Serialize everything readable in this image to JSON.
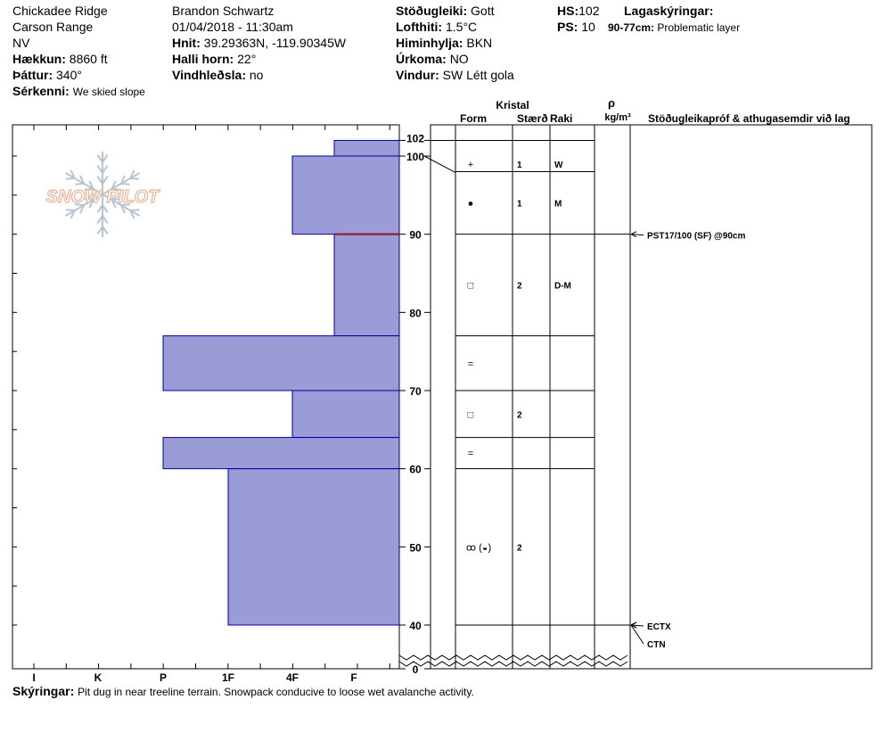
{
  "header": {
    "location": "Chickadee Ridge",
    "range": "Carson Range",
    "state": "NV",
    "elevation_label": "Hækkun:",
    "elevation": "8860 ft",
    "aspect_label": "Þáttur:",
    "aspect": "340°",
    "features_label": "Sérkenni:",
    "features": "We skied slope",
    "observer": "Brandon Schwartz",
    "datetime": "01/04/2018 - 11:30am",
    "coords_label": "Hnit:",
    "coords": "39.29363N, -119.90345W",
    "slope_label": "Halli horn:",
    "slope": "22°",
    "wind_loading_label": "Vindhleðsla:",
    "wind_loading": "no",
    "stability_label": "Stöðugleiki:",
    "stability": "Gott",
    "air_temp_label": "Lofthiti:",
    "air_temp": "1.5°C",
    "sky_label": "Himinhylja:",
    "sky": "BKN",
    "precip_label": "Úrkoma:",
    "precip": "NO",
    "wind_label": "Vindur:",
    "wind": "SW Létt gola",
    "hs_label": "HS:",
    "hs": "102",
    "ps_label": "PS:",
    "ps": "10",
    "layer_notes_label": "Lagaskýringar:",
    "layer_note_range": "90-77cm:",
    "layer_note_text": "Problematic layer"
  },
  "footer": {
    "notes_label": "Skýringar:",
    "notes": "Pit dug in near treeline terrain. Snowpack conducive to loose wet avalanche activity."
  },
  "logo": {
    "text": "SNOW PILOT"
  },
  "columns": {
    "crystal": "Kristal",
    "form": "Form",
    "size": "Stærð",
    "moisture": "Raki",
    "density_symbol": "ρ",
    "density_unit": "kg/m³",
    "comments": "Stöðugleikapróf & athugasemdir við lag"
  },
  "chart_data": {
    "type": "bar",
    "orientation": "horizontal",
    "y_unit": "cm",
    "ylim": [
      0,
      102
    ],
    "y_ticks": [
      0,
      40,
      50,
      60,
      70,
      80,
      90,
      100,
      102
    ],
    "hardness_scale": [
      "I",
      "K",
      "P",
      "1F",
      "4F",
      "F"
    ],
    "layers": [
      {
        "top": 102,
        "bottom": 100,
        "hardness": "F"
      },
      {
        "top": 100,
        "bottom": 90,
        "hardness": "4F"
      },
      {
        "top": 90,
        "bottom": 77,
        "hardness": "F"
      },
      {
        "top": 77,
        "bottom": 70,
        "hardness": "P"
      },
      {
        "top": 70,
        "bottom": 64,
        "hardness": "4F"
      },
      {
        "top": 64,
        "bottom": 60,
        "hardness": "P"
      },
      {
        "top": 60,
        "bottom": 40,
        "hardness": "1F"
      }
    ],
    "problem_layer_depth": 90,
    "colors": {
      "bar": "#9b9bd7",
      "bar_border": "#0000a0",
      "problem_line": "#8b1a1a",
      "logo": "#e8b49b",
      "flake": "#b8c4d0"
    },
    "crystal_rows": [
      {
        "top": 100,
        "bottom": 98,
        "form": "+",
        "size": "1",
        "moisture": "W"
      },
      {
        "top": 98,
        "bottom": 90,
        "form": "●",
        "size": "1",
        "moisture": "M"
      },
      {
        "top": 90,
        "bottom": 77,
        "form": "□",
        "size": "2",
        "moisture": "D-M"
      },
      {
        "top": 77,
        "bottom": 70,
        "form": "=",
        "size": "",
        "moisture": ""
      },
      {
        "top": 70,
        "bottom": 64,
        "form": "□",
        "size": "2",
        "moisture": ""
      },
      {
        "top": 64,
        "bottom": 60,
        "form": "=",
        "size": "",
        "moisture": ""
      },
      {
        "top": 60,
        "bottom": 40,
        "form": "ꝏ (◒)",
        "size": "2",
        "moisture": ""
      }
    ],
    "tests": [
      {
        "depth": 90,
        "label": "PST17/100 (SF) @90cm"
      },
      {
        "depth": 40,
        "label": "ECTX"
      },
      {
        "depth": 40,
        "label": "CTN"
      }
    ]
  }
}
